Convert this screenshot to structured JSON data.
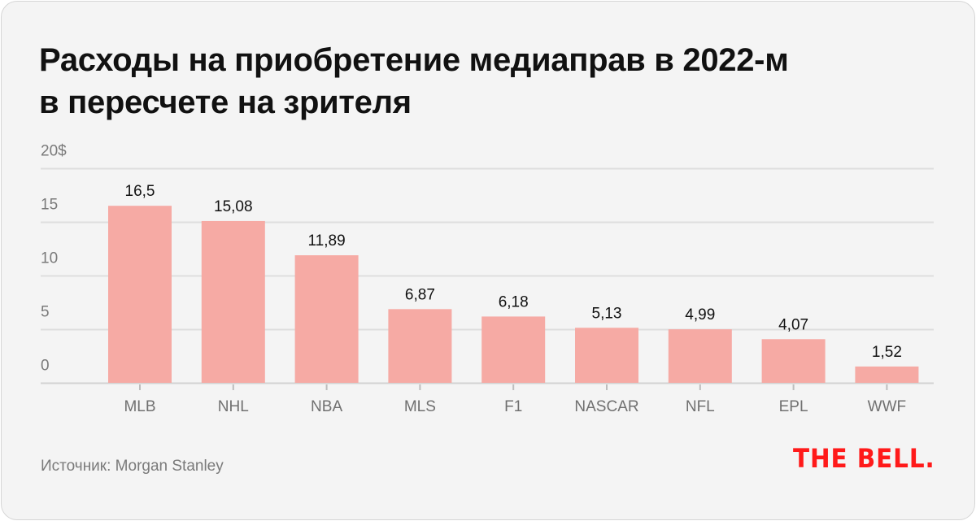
{
  "header": {
    "title_line1": "Расходы на приобретение медиаправ в 2022-м",
    "title_line2": "в пересчете на зрителя"
  },
  "footer": {
    "source": "Источник: Morgan Stanley",
    "logo": "THE BELL."
  },
  "colors": {
    "bar": "#f6aaa4",
    "grid": "#dedede",
    "logo": "#ff1a1a"
  },
  "chart_data": {
    "type": "bar",
    "title": "Расходы на приобретение медиаправ в 2022-м в пересчете на зрителя",
    "xlabel": "",
    "ylabel": "",
    "ylim": [
      0,
      20
    ],
    "yticks": [
      0,
      5,
      10,
      15,
      20
    ],
    "ytick_labels": [
      "0",
      "5",
      "10",
      "15",
      "20$"
    ],
    "grid": true,
    "categories": [
      "MLB",
      "NHL",
      "NBA",
      "MLS",
      "F1",
      "NASCAR",
      "NFL",
      "EPL",
      "WWF"
    ],
    "values": [
      16.5,
      15.08,
      11.89,
      6.87,
      6.18,
      5.13,
      4.99,
      4.07,
      1.52
    ],
    "value_labels": [
      "16,5",
      "15,08",
      "11,89",
      "6,87",
      "6,18",
      "5,13",
      "4,99",
      "4,07",
      "1,52"
    ]
  }
}
